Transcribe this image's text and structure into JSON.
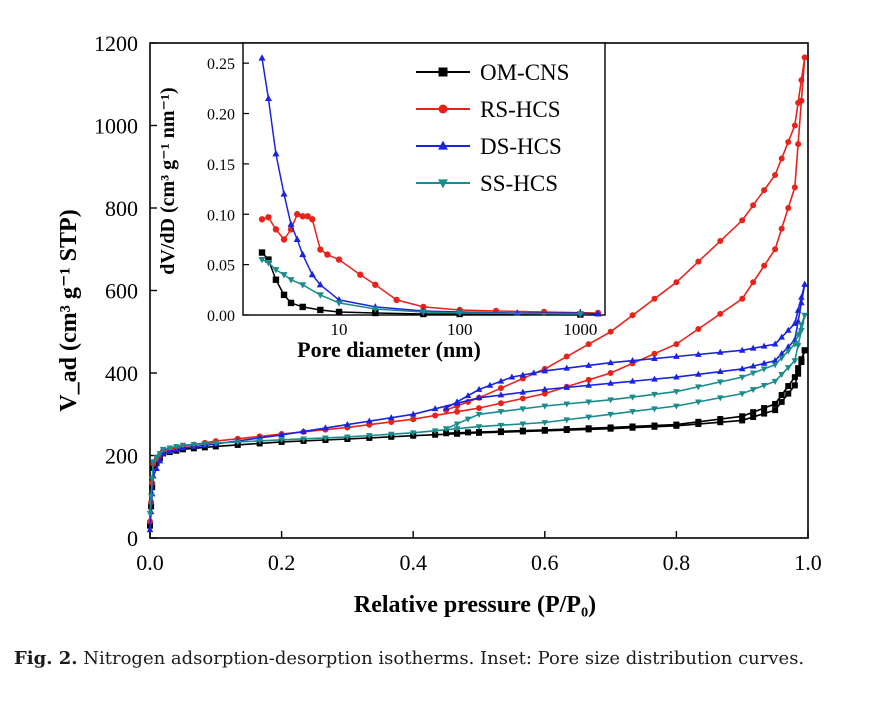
{
  "caption": {
    "label": "Fig. 2.",
    "text": " Nitrogen adsorption-desorption isotherms. Inset: Pore size distribution curves."
  },
  "chart_data": [
    {
      "id": "main",
      "type": "line",
      "title": "",
      "xlabel": "Relative pressure (P/P₀)",
      "ylabel": "V_ad (cm³ g⁻¹ STP)",
      "xlim": [
        0.0,
        1.0
      ],
      "ylim": [
        0,
        1200
      ],
      "xticks": [
        "0.0",
        "0.2",
        "0.4",
        "0.6",
        "0.8",
        "1.0"
      ],
      "yticks": [
        "0",
        "200",
        "400",
        "600",
        "800",
        "1000",
        "1200"
      ],
      "grid": false,
      "series": [
        {
          "name": "OM-CNS",
          "color": "#000000",
          "marker": "square",
          "adsorption": [
            [
              0.0,
              30
            ],
            [
              0.005,
              170
            ],
            [
              0.02,
              205
            ],
            [
              0.05,
              215
            ],
            [
              0.1,
              222
            ],
            [
              0.2,
              233
            ],
            [
              0.3,
              240
            ],
            [
              0.4,
              248
            ],
            [
              0.5,
              255
            ],
            [
              0.6,
              260
            ],
            [
              0.7,
              265
            ],
            [
              0.8,
              272
            ],
            [
              0.9,
              285
            ],
            [
              0.95,
              310
            ],
            [
              0.98,
              370
            ],
            [
              0.995,
              455
            ]
          ],
          "desorption": [
            [
              0.995,
              455
            ],
            [
              0.98,
              390
            ],
            [
              0.95,
              325
            ],
            [
              0.9,
              295
            ],
            [
              0.8,
              275
            ],
            [
              0.7,
              268
            ],
            [
              0.6,
              262
            ],
            [
              0.5,
              257
            ],
            [
              0.45,
              254
            ]
          ]
        },
        {
          "name": "RS-HCS",
          "color": "#e8231b",
          "marker": "circle",
          "adsorption": [
            [
              0.0,
              40
            ],
            [
              0.005,
              180
            ],
            [
              0.02,
              212
            ],
            [
              0.05,
              222
            ],
            [
              0.1,
              235
            ],
            [
              0.2,
              252
            ],
            [
              0.3,
              268
            ],
            [
              0.4,
              288
            ],
            [
              0.5,
              315
            ],
            [
              0.6,
              350
            ],
            [
              0.7,
              400
            ],
            [
              0.8,
              470
            ],
            [
              0.9,
              580
            ],
            [
              0.95,
              700
            ],
            [
              0.98,
              850
            ],
            [
              0.995,
              1165
            ]
          ],
          "desorption": [
            [
              0.995,
              1165
            ],
            [
              0.98,
              1000
            ],
            [
              0.95,
              880
            ],
            [
              0.9,
              770
            ],
            [
              0.8,
              620
            ],
            [
              0.7,
              500
            ],
            [
              0.6,
              410
            ],
            [
              0.5,
              340
            ],
            [
              0.45,
              310
            ]
          ]
        },
        {
          "name": "DS-HCS",
          "color": "#1a23e0",
          "marker": "triangle-up",
          "adsorption": [
            [
              0.0,
              20
            ],
            [
              0.005,
              150
            ],
            [
              0.02,
              205
            ],
            [
              0.05,
              218
            ],
            [
              0.1,
              228
            ],
            [
              0.2,
              250
            ],
            [
              0.3,
              275
            ],
            [
              0.4,
              300
            ],
            [
              0.5,
              340
            ],
            [
              0.6,
              360
            ],
            [
              0.7,
              375
            ],
            [
              0.8,
              390
            ],
            [
              0.9,
              410
            ],
            [
              0.95,
              430
            ],
            [
              0.98,
              480
            ],
            [
              0.995,
              615
            ]
          ],
          "desorption": [
            [
              0.995,
              615
            ],
            [
              0.98,
              520
            ],
            [
              0.95,
              470
            ],
            [
              0.9,
              455
            ],
            [
              0.8,
              440
            ],
            [
              0.7,
              425
            ],
            [
              0.6,
              405
            ],
            [
              0.55,
              390
            ],
            [
              0.5,
              360
            ],
            [
              0.45,
              315
            ]
          ]
        },
        {
          "name": "SS-HCS",
          "color": "#1a8c8c",
          "marker": "triangle-down",
          "adsorption": [
            [
              0.0,
              60
            ],
            [
              0.005,
              185
            ],
            [
              0.02,
              215
            ],
            [
              0.05,
              225
            ],
            [
              0.1,
              230
            ],
            [
              0.2,
              238
            ],
            [
              0.3,
              245
            ],
            [
              0.4,
              255
            ],
            [
              0.5,
              270
            ],
            [
              0.6,
              280
            ],
            [
              0.7,
              300
            ],
            [
              0.8,
              320
            ],
            [
              0.9,
              350
            ],
            [
              0.95,
              380
            ],
            [
              0.98,
              430
            ],
            [
              0.995,
              540
            ]
          ],
          "desorption": [
            [
              0.995,
              540
            ],
            [
              0.98,
              470
            ],
            [
              0.95,
              420
            ],
            [
              0.9,
              390
            ],
            [
              0.8,
              355
            ],
            [
              0.7,
              335
            ],
            [
              0.6,
              320
            ],
            [
              0.5,
              300
            ],
            [
              0.45,
              265
            ]
          ]
        }
      ]
    },
    {
      "id": "inset",
      "type": "line",
      "title": "",
      "xlabel": "Pore diameter (nm)",
      "ylabel": "dV/dD (cm³ g⁻¹ nm⁻¹)",
      "xscale": "log",
      "xlim": [
        1.6,
        1600
      ],
      "ylim": [
        0.0,
        0.27
      ],
      "xticks": [
        "10",
        "100",
        "1000"
      ],
      "yticks": [
        "0.00",
        "0.05",
        "0.10",
        "0.15",
        "0.20",
        "0.25"
      ],
      "legend": "top-right",
      "legend_entries": [
        "OM-CNS",
        "RS-HCS",
        "DS-HCS",
        "SS-HCS"
      ],
      "series": [
        {
          "name": "OM-CNS",
          "color": "#000000",
          "marker": "square",
          "points": [
            [
              2.3,
              0.062
            ],
            [
              2.6,
              0.055
            ],
            [
              3.0,
              0.035
            ],
            [
              3.5,
              0.02
            ],
            [
              4.0,
              0.012
            ],
            [
              5,
              0.008
            ],
            [
              7,
              0.005
            ],
            [
              10,
              0.003
            ],
            [
              20,
              0.002
            ],
            [
              50,
              0.001
            ],
            [
              100,
              0.001
            ],
            [
              1000,
              0.0005
            ]
          ]
        },
        {
          "name": "RS-HCS",
          "color": "#e8231b",
          "marker": "circle",
          "points": [
            [
              2.3,
              0.095
            ],
            [
              2.6,
              0.097
            ],
            [
              3.0,
              0.085
            ],
            [
              3.5,
              0.075
            ],
            [
              4.0,
              0.085
            ],
            [
              4.5,
              0.1
            ],
            [
              5.0,
              0.098
            ],
            [
              5.5,
              0.098
            ],
            [
              6.0,
              0.095
            ],
            [
              7,
              0.065
            ],
            [
              8,
              0.06
            ],
            [
              10,
              0.055
            ],
            [
              15,
              0.04
            ],
            [
              20,
              0.03
            ],
            [
              30,
              0.015
            ],
            [
              50,
              0.008
            ],
            [
              100,
              0.005
            ],
            [
              200,
              0.004
            ],
            [
              500,
              0.003
            ],
            [
              1400,
              0.002
            ]
          ]
        },
        {
          "name": "DS-HCS",
          "color": "#1a23e0",
          "marker": "triangle-up",
          "points": [
            [
              2.3,
              0.255
            ],
            [
              2.6,
              0.215
            ],
            [
              3.0,
              0.16
            ],
            [
              3.5,
              0.12
            ],
            [
              4.0,
              0.09
            ],
            [
              4.5,
              0.075
            ],
            [
              5.0,
              0.06
            ],
            [
              6.0,
              0.04
            ],
            [
              7,
              0.03
            ],
            [
              10,
              0.015
            ],
            [
              20,
              0.008
            ],
            [
              50,
              0.004
            ],
            [
              100,
              0.003
            ],
            [
              300,
              0.002
            ],
            [
              1000,
              0.002
            ],
            [
              1400,
              0.001
            ]
          ]
        },
        {
          "name": "SS-HCS",
          "color": "#1a8c8c",
          "marker": "triangle-down",
          "points": [
            [
              2.3,
              0.055
            ],
            [
              2.6,
              0.052
            ],
            [
              3.0,
              0.045
            ],
            [
              3.5,
              0.04
            ],
            [
              4.0,
              0.035
            ],
            [
              5,
              0.03
            ],
            [
              7,
              0.02
            ],
            [
              10,
              0.012
            ],
            [
              20,
              0.006
            ],
            [
              50,
              0.003
            ],
            [
              100,
              0.002
            ],
            [
              1000,
              0.001
            ]
          ]
        }
      ]
    }
  ]
}
